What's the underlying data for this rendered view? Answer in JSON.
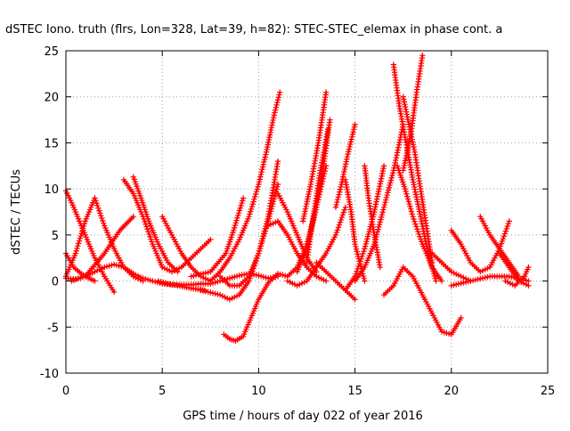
{
  "chart_data": {
    "type": "scatter",
    "title": "dSTEC Iono. truth (flrs, Lon=328, Lat=39, h=82): STEC-STEC_elemax in phase cont. a",
    "xlabel": "GPS time / hours of day 022 of year 2016",
    "ylabel": "dSTEC  / TECUs",
    "xlim": [
      0,
      25
    ],
    "ylim": [
      -10,
      25
    ],
    "xticks": [
      0,
      5,
      10,
      15,
      20,
      25
    ],
    "yticks": [
      -10,
      -5,
      0,
      5,
      10,
      15,
      20,
      25
    ],
    "xtick_labels": [
      "0",
      "5",
      "10",
      "15",
      "20",
      "25"
    ],
    "ytick_labels": [
      "-10",
      "-5",
      "0",
      "5",
      "10",
      "15",
      "20",
      "25"
    ],
    "grid": true,
    "marker": "plus",
    "color": "#ff0000",
    "series": [
      {
        "x": [
          0.0,
          0.3,
          0.6,
          1.0,
          1.5,
          2.0,
          2.5
        ],
        "y": [
          9.8,
          8.5,
          7.0,
          5.0,
          2.5,
          0.5,
          -1.2
        ]
      },
      {
        "x": [
          0.0,
          0.4,
          0.8,
          1.2,
          1.5
        ],
        "y": [
          3.0,
          1.5,
          0.8,
          0.3,
          0.0
        ]
      },
      {
        "x": [
          0.0,
          0.5,
          1.0,
          1.5,
          2.0,
          2.5,
          3.0,
          3.5,
          4.0,
          4.5,
          5.0,
          5.5,
          6.0,
          6.5,
          7.0,
          7.5,
          8.0,
          8.5,
          9.0,
          9.5,
          10.0,
          10.5,
          11.0
        ],
        "y": [
          0.3,
          0.2,
          0.5,
          1.0,
          1.5,
          1.8,
          1.5,
          0.8,
          0.3,
          0.0,
          -0.3,
          -0.4,
          -0.4,
          -0.4,
          -0.3,
          -0.3,
          0.0,
          0.3,
          0.6,
          0.8,
          0.6,
          0.3,
          0.5
        ]
      },
      {
        "x": [
          0.0,
          0.5,
          1.0,
          1.5
        ],
        "y": [
          0.5,
          3.0,
          6.5,
          9.0
        ]
      },
      {
        "x": [
          1.5,
          2.0,
          2.5,
          3.0,
          3.5,
          4.0
        ],
        "y": [
          9.0,
          6.0,
          3.5,
          1.5,
          0.5,
          0.0
        ]
      },
      {
        "x": [
          0.3,
          1.0,
          2.0,
          2.8,
          3.5
        ],
        "y": [
          0.0,
          0.5,
          3.0,
          5.5,
          7.0
        ]
      },
      {
        "x": [
          3.5,
          3.9,
          4.3,
          4.8,
          5.3,
          5.8
        ],
        "y": [
          11.3,
          9.0,
          6.5,
          4.0,
          2.0,
          1.0
        ]
      },
      {
        "x": [
          3.0,
          3.5,
          4.0,
          4.5,
          5.0
        ],
        "y": [
          11.0,
          9.5,
          7.0,
          4.0,
          1.5
        ]
      },
      {
        "x": [
          5.0,
          5.5,
          6.0,
          6.5,
          7.0,
          7.5
        ],
        "y": [
          1.5,
          1.0,
          1.5,
          2.5,
          3.5,
          4.5
        ]
      },
      {
        "x": [
          5.0,
          5.5,
          6.0,
          6.5,
          7.0,
          7.5
        ],
        "y": [
          7.0,
          5.0,
          3.0,
          1.5,
          0.5,
          0.0
        ]
      },
      {
        "x": [
          4.8,
          5.3,
          5.8,
          6.5,
          7.2
        ],
        "y": [
          0.0,
          -0.3,
          -0.5,
          -0.8,
          -1.0
        ]
      },
      {
        "x": [
          8.2,
          8.5,
          8.8,
          9.2,
          9.5,
          10.0,
          10.5,
          11.0,
          11.5
        ],
        "y": [
          -5.8,
          -6.3,
          -6.5,
          -6.0,
          -4.5,
          -2.0,
          -0.2,
          0.8,
          0.5
        ]
      },
      {
        "x": [
          7.5,
          8.0,
          8.5,
          9.0,
          9.5,
          10.0,
          10.4,
          10.8,
          11.1
        ],
        "y": [
          0.0,
          1.0,
          2.5,
          4.5,
          7.0,
          10.5,
          14.0,
          18.0,
          20.5
        ]
      },
      {
        "x": [
          7.0,
          8.0,
          8.5,
          9.0,
          9.5,
          10.0,
          10.5,
          11.0
        ],
        "y": [
          -1.0,
          -1.5,
          -2.0,
          -1.5,
          0.0,
          3.0,
          7.0,
          13.0
        ]
      },
      {
        "x": [
          6.5,
          7.5,
          8.3,
          8.7,
          9.2
        ],
        "y": [
          0.5,
          1.0,
          3.0,
          5.5,
          9.0
        ]
      },
      {
        "x": [
          8.0,
          8.5,
          9.0,
          9.5,
          10.0,
          10.5,
          11.0
        ],
        "y": [
          0.5,
          -0.5,
          -0.5,
          0.5,
          3.0,
          6.5,
          10.5
        ]
      },
      {
        "x": [
          10.5,
          11.0,
          11.5,
          12.0,
          12.5,
          13.0,
          13.5
        ],
        "y": [
          6.0,
          6.5,
          5.0,
          3.0,
          1.5,
          0.5,
          0.0
        ]
      },
      {
        "x": [
          11.0,
          11.5,
          12.0,
          12.5,
          13.0
        ],
        "y": [
          9.5,
          7.5,
          5.0,
          2.5,
          1.0
        ]
      },
      {
        "x": [
          11.5,
          12.0,
          12.5,
          13.0,
          13.5
        ],
        "y": [
          0.5,
          1.5,
          4.0,
          8.0,
          12.5
        ]
      },
      {
        "x": [
          12.0,
          12.5,
          13.0,
          13.4,
          13.7
        ],
        "y": [
          1.0,
          3.5,
          8.0,
          13.0,
          17.5
        ]
      },
      {
        "x": [
          12.5,
          12.8,
          13.2,
          13.6
        ],
        "y": [
          2.0,
          6.5,
          12.0,
          16.5
        ]
      },
      {
        "x": [
          12.3,
          12.7,
          13.1,
          13.5
        ],
        "y": [
          6.5,
          10.5,
          15.0,
          20.5
        ]
      },
      {
        "x": [
          11.5,
          12.0,
          12.5,
          13.0,
          13.5,
          14.0,
          14.5
        ],
        "y": [
          0.0,
          -0.5,
          0.0,
          1.5,
          3.0,
          5.0,
          8.0
        ]
      },
      {
        "x": [
          13.0,
          13.5,
          14.0,
          14.5,
          15.0
        ],
        "y": [
          2.0,
          1.0,
          0.0,
          -1.0,
          -2.0
        ]
      },
      {
        "x": [
          14.0,
          14.3,
          14.6,
          15.0
        ],
        "y": [
          8.0,
          10.5,
          13.5,
          17.0
        ]
      },
      {
        "x": [
          14.5,
          14.8,
          15.0,
          15.5
        ],
        "y": [
          11.0,
          7.5,
          4.0,
          0.0
        ]
      },
      {
        "x": [
          14.5,
          15.0,
          15.5,
          16.0,
          16.5
        ],
        "y": [
          -1.0,
          0.5,
          3.5,
          7.5,
          12.5
        ]
      },
      {
        "x": [
          15.5,
          15.7,
          16.0,
          16.3
        ],
        "y": [
          12.5,
          9.0,
          5.0,
          1.5
        ]
      },
      {
        "x": [
          15.0,
          15.5,
          16.0,
          16.5,
          17.0,
          17.5
        ],
        "y": [
          0.0,
          1.5,
          4.0,
          8.0,
          12.0,
          17.0
        ]
      },
      {
        "x": [
          16.5,
          17.0,
          17.5,
          18.0,
          18.5,
          19.0,
          19.5,
          20.0,
          20.5
        ],
        "y": [
          -1.5,
          -0.5,
          1.5,
          0.5,
          -1.5,
          -3.5,
          -5.5,
          -5.8,
          -4.0
        ]
      },
      {
        "x": [
          17.0,
          17.3,
          17.7,
          18.0,
          18.4,
          18.8,
          19.2
        ],
        "y": [
          23.5,
          19.0,
          14.5,
          11.0,
          7.0,
          3.0,
          0.0
        ]
      },
      {
        "x": [
          17.5,
          17.8,
          18.1,
          18.4,
          18.7,
          19.0
        ],
        "y": [
          20.0,
          17.0,
          14.0,
          10.0,
          6.0,
          2.0
        ]
      },
      {
        "x": [
          17.5,
          17.9,
          18.2,
          18.5
        ],
        "y": [
          12.0,
          16.0,
          20.5,
          24.5
        ]
      },
      {
        "x": [
          17.2,
          17.6,
          18.0,
          18.5,
          19.0,
          19.5
        ],
        "y": [
          12.5,
          10.0,
          7.0,
          4.0,
          1.5,
          0.0
        ]
      },
      {
        "x": [
          19.0,
          19.5,
          20.0,
          20.5,
          21.0
        ],
        "y": [
          3.0,
          2.0,
          1.0,
          0.5,
          0.0
        ]
      },
      {
        "x": [
          20.0,
          20.5,
          21.0,
          21.5,
          22.0,
          22.5,
          23.0
        ],
        "y": [
          5.5,
          4.0,
          2.0,
          1.0,
          1.5,
          3.5,
          6.5
        ]
      },
      {
        "x": [
          21.5,
          22.0,
          22.5,
          23.0,
          23.5
        ],
        "y": [
          7.0,
          5.0,
          3.5,
          2.0,
          0.5
        ]
      },
      {
        "x": [
          22.5,
          23.0,
          23.5,
          24.0
        ],
        "y": [
          3.0,
          1.5,
          0.0,
          -0.5
        ]
      },
      {
        "x": [
          20.0,
          21.0,
          22.0,
          23.0,
          24.0
        ],
        "y": [
          -0.5,
          0.0,
          0.5,
          0.5,
          0.0
        ]
      },
      {
        "x": [
          22.8,
          23.3,
          23.8,
          24.0
        ],
        "y": [
          0.0,
          -0.5,
          0.5,
          1.5
        ]
      }
    ]
  }
}
